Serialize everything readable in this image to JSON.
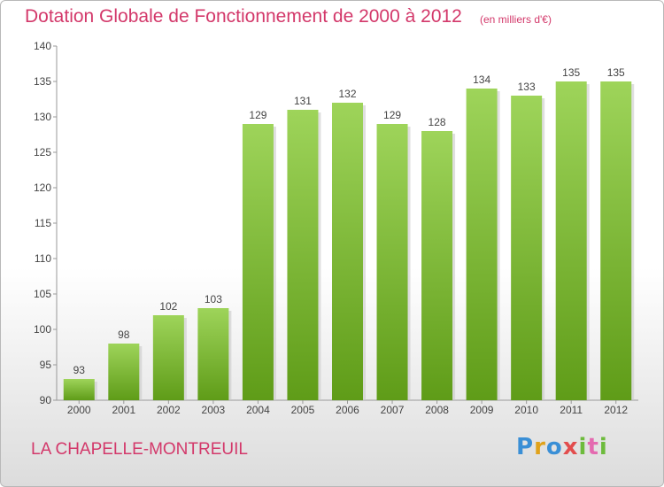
{
  "header": {
    "title": "Dotation Globale de Fonctionnement de 2000 à 2012",
    "unit": "(en milliers d'€)"
  },
  "footer": {
    "commune": "LA CHAPELLE-MONTREUIL",
    "logo_text": "Proxiti"
  },
  "colors": {
    "accent_text": "#d3386a",
    "bar_top": "#9ed45a",
    "bar_bottom": "#5f9c18"
  },
  "chart_data": {
    "type": "bar",
    "title": "Dotation Globale de Fonctionnement de 2000 à 2012",
    "subtitle": "(en milliers d'€)",
    "categories": [
      "2000",
      "2001",
      "2002",
      "2003",
      "2004",
      "2005",
      "2006",
      "2007",
      "2008",
      "2009",
      "2010",
      "2011",
      "2012"
    ],
    "values": [
      93,
      98,
      102,
      103,
      129,
      131,
      132,
      129,
      128,
      134,
      133,
      135,
      135
    ],
    "xlabel": "",
    "ylabel": "",
    "ylim": [
      90,
      140
    ],
    "yticks": [
      90,
      95,
      100,
      105,
      110,
      115,
      120,
      125,
      130,
      135,
      140
    ],
    "grid": false,
    "legend": "none"
  }
}
